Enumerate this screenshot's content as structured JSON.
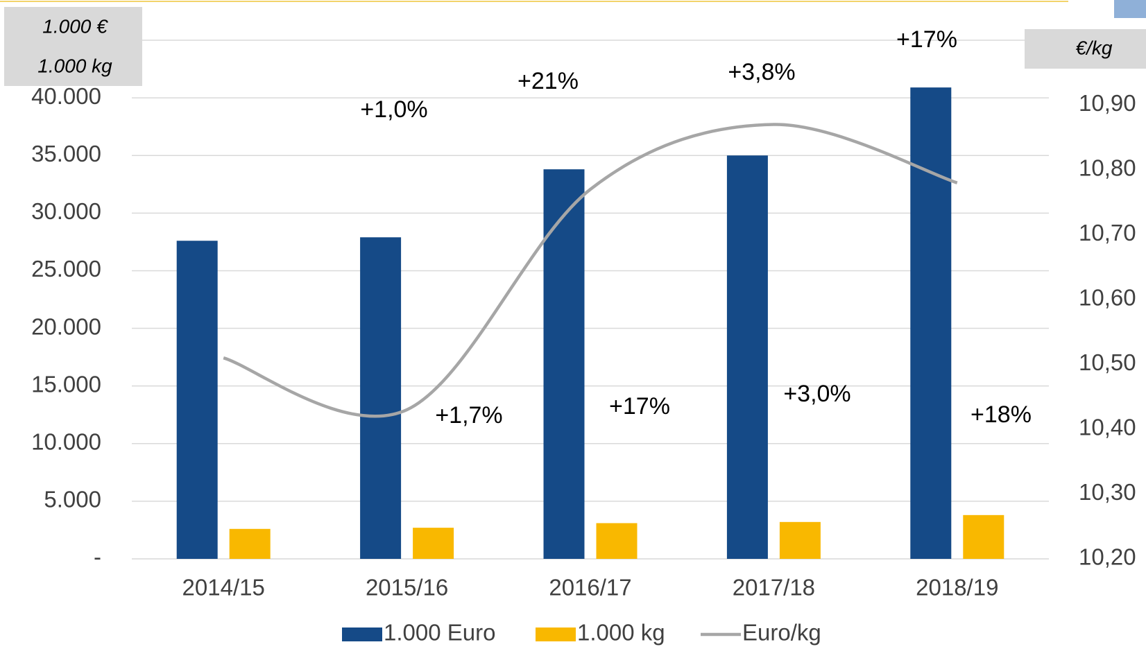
{
  "chart_data": {
    "type": "bar",
    "categories": [
      "2014/15",
      "2015/16",
      "2016/17",
      "2017/18",
      "2018/19"
    ],
    "series": [
      {
        "name": "1.000 Euro",
        "type": "bar",
        "color": "#154a87",
        "values": [
          27600,
          27900,
          33800,
          35000,
          40900
        ],
        "growth_labels": [
          null,
          "+1,0%",
          "+21%",
          "+3,8%",
          "+17%"
        ]
      },
      {
        "name": "1.000 kg",
        "type": "bar",
        "color": "#f9b800",
        "values": [
          2600,
          2700,
          3100,
          3200,
          3800
        ],
        "growth_labels": [
          null,
          "+1,7%",
          "+17%",
          "+3,0%",
          "+18%"
        ]
      },
      {
        "name": "Euro/kg",
        "type": "line",
        "color": "#a6a6a6",
        "axis": "y2",
        "values": [
          10.51,
          10.43,
          10.77,
          10.87,
          10.78
        ]
      }
    ],
    "y_axis_label": [
      "1.000 €",
      "1.000 kg"
    ],
    "y2_axis_label": "€/kg",
    "ylim": [
      0,
      45000
    ],
    "yticks": [
      {
        "value": 0,
        "label": "-"
      },
      {
        "value": 5000,
        "label": "5.000"
      },
      {
        "value": 10000,
        "label": "10.000"
      },
      {
        "value": 15000,
        "label": "15.000"
      },
      {
        "value": 20000,
        "label": "20.000"
      },
      {
        "value": 25000,
        "label": "25.000"
      },
      {
        "value": 30000,
        "label": "30.000"
      },
      {
        "value": 35000,
        "label": "35.000"
      },
      {
        "value": 40000,
        "label": "40.000"
      }
    ],
    "y2lim": [
      10.2,
      11.0
    ],
    "y2ticks": [
      {
        "value": 10.2,
        "label": "10,20"
      },
      {
        "value": 10.3,
        "label": "10,30"
      },
      {
        "value": 10.4,
        "label": "10,40"
      },
      {
        "value": 10.5,
        "label": "10,50"
      },
      {
        "value": 10.6,
        "label": "10,60"
      },
      {
        "value": 10.7,
        "label": "10,70"
      },
      {
        "value": 10.8,
        "label": "10,80"
      },
      {
        "value": 10.9,
        "label": "10,90"
      }
    ],
    "grid": true,
    "legend": "bottom"
  }
}
